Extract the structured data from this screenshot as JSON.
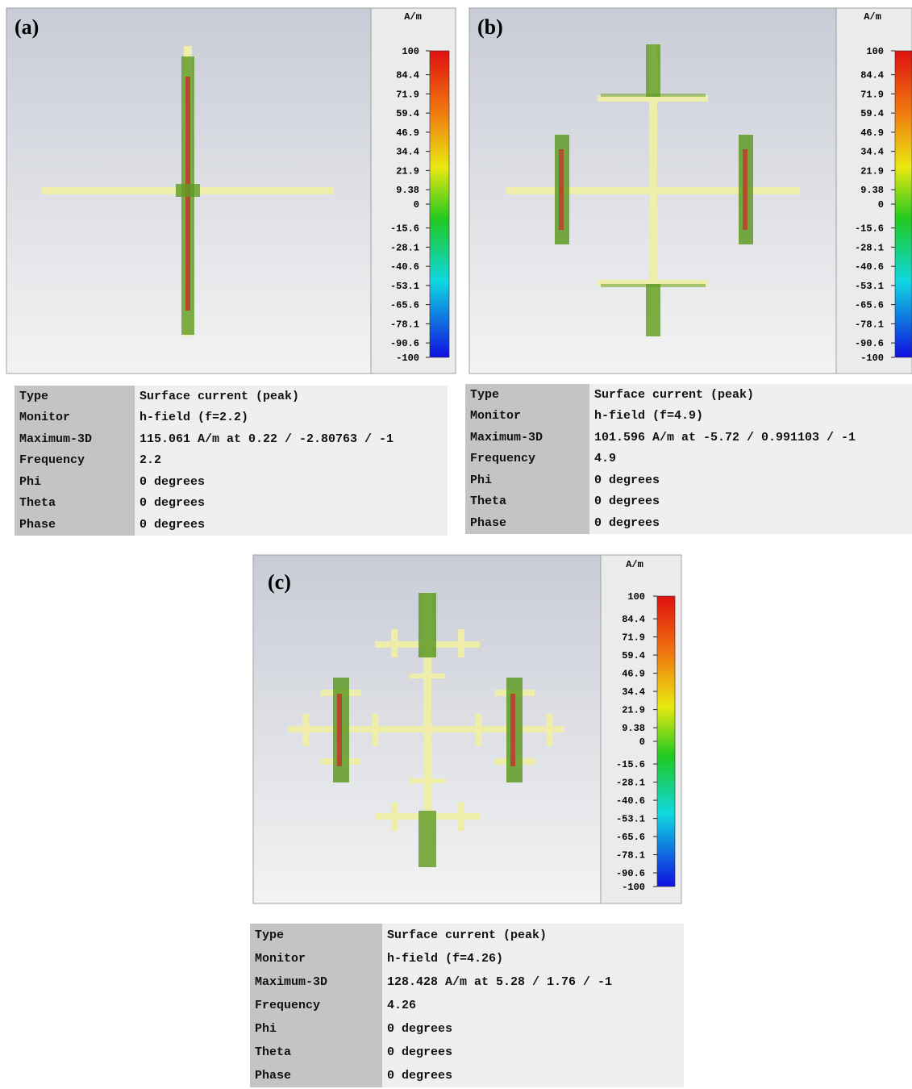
{
  "panels": [
    {
      "label": "(a)",
      "unit": "A/m",
      "scale": [
        100,
        84.4,
        71.9,
        59.4,
        46.9,
        34.4,
        21.9,
        9.38,
        0,
        -15.6,
        -28.1,
        -40.6,
        -53.1,
        -65.6,
        -78.1,
        -90.6,
        -100
      ],
      "rows": [
        [
          "Type",
          "Surface current (peak)"
        ],
        [
          "Monitor",
          "h-field (f=2.2)"
        ],
        [
          "Maximum-3D",
          "115.061 A/m at 0.22 / -2.80763 / -1"
        ],
        [
          "Frequency",
          "2.2"
        ],
        [
          "Phi",
          "0 degrees"
        ],
        [
          "Theta",
          "0 degrees"
        ],
        [
          "Phase",
          "0 degrees"
        ]
      ]
    },
    {
      "label": "(b)",
      "unit": "A/m",
      "scale": [
        100,
        84.4,
        71.9,
        59.4,
        46.9,
        34.4,
        21.9,
        9.38,
        0,
        -15.6,
        -28.1,
        -40.6,
        -53.1,
        -65.6,
        -78.1,
        -90.6,
        -100
      ],
      "rows": [
        [
          "Type",
          "Surface current (peak)"
        ],
        [
          "Monitor",
          "h-field (f=4.9)"
        ],
        [
          "Maximum-3D",
          "101.596 A/m at -5.72 / 0.991103 / -1"
        ],
        [
          "Frequency",
          "4.9"
        ],
        [
          "Phi",
          "0 degrees"
        ],
        [
          "Theta",
          "0 degrees"
        ],
        [
          "Phase",
          "0 degrees"
        ]
      ]
    },
    {
      "label": "(c)",
      "unit": "A/m",
      "scale": [
        100,
        84.4,
        71.9,
        59.4,
        46.9,
        34.4,
        21.9,
        9.38,
        0,
        -15.6,
        -28.1,
        -40.6,
        -53.1,
        -65.6,
        -78.1,
        -90.6,
        -100
      ],
      "rows": [
        [
          "Type",
          "Surface current (peak)"
        ],
        [
          "Monitor",
          "h-field (f=4.26)"
        ],
        [
          "Maximum-3D",
          "128.428 A/m at 5.28 / 1.76 / -1"
        ],
        [
          "Frequency",
          "4.26"
        ],
        [
          "Phi",
          "0 degrees"
        ],
        [
          "Theta",
          "0 degrees"
        ],
        [
          "Phase",
          "0 degrees"
        ]
      ]
    }
  ]
}
